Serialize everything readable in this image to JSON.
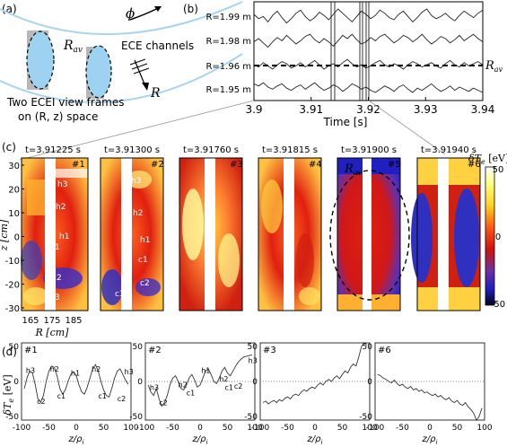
{
  "panel_a": {
    "label": "(a)",
    "phi": "ϕ",
    "rav": "R",
    "rav_sub": "av",
    "ece": "ECE channels",
    "r_arrow": "R",
    "caption_line1": "Two ECEI view frames",
    "caption_line2": "on (R, z) space"
  },
  "panel_b": {
    "label": "(b)",
    "rows": [
      {
        "label": "R=1.99 m",
        "values": [
          0.5,
          0.1,
          0.3,
          -0.2,
          0.4,
          0.8,
          0.2,
          -0.3,
          0.1,
          0.6,
          0.9,
          0.3,
          -0.1,
          0.2,
          0.7,
          0.4,
          0.0,
          0.5,
          1.0,
          0.6,
          0.2,
          -0.2,
          0.3,
          0.8,
          0.5,
          0.1,
          0.4,
          0.9,
          0.6,
          0.2,
          0.0,
          0.5,
          0.8,
          0.3,
          -0.2,
          0.2,
          0.7,
          1.0,
          0.4,
          0.1,
          0.3,
          0.6,
          0.2,
          -0.1,
          0.4,
          0.8,
          0.5,
          0.2,
          0.6,
          0.9
        ]
      },
      {
        "label": "R=1.98 m",
        "values": [
          0.2,
          0.5,
          0.1,
          -0.3,
          0.2,
          0.6,
          0.3,
          0.8,
          0.4,
          0.0,
          0.3,
          0.7,
          0.9,
          0.4,
          0.1,
          0.5,
          0.2,
          -0.2,
          0.3,
          0.8,
          0.5,
          0.9,
          0.4,
          0.0,
          0.2,
          0.6,
          0.3,
          0.7,
          0.9,
          0.5,
          0.1,
          0.4,
          0.8,
          0.6,
          0.2,
          0.5,
          0.9,
          0.4,
          0.0,
          0.3,
          0.7,
          0.5,
          0.1,
          0.4,
          0.8,
          0.3,
          0.6,
          0.9,
          0.5,
          0.2
        ]
      },
      {
        "label": "R=1.96 m",
        "values": [
          0.4,
          0.2,
          0.6,
          0.3,
          0.0,
          0.4,
          0.7,
          0.5,
          0.1,
          0.3,
          0.6,
          0.2,
          0.5,
          0.8,
          0.4,
          0.0,
          0.3,
          0.5,
          0.2,
          0.6,
          0.9,
          0.5,
          0.2,
          0.4,
          0.1,
          0.3,
          0.6,
          0.8,
          0.4,
          0.2,
          0.5,
          0.3,
          0.0,
          0.4,
          0.7,
          0.5,
          0.2,
          0.4,
          0.6,
          0.3,
          0.1,
          0.5,
          0.8,
          0.4,
          0.2,
          0.6,
          0.3,
          0.5,
          0.7,
          0.4
        ]
      },
      {
        "label": "R=1.95 m",
        "values": [
          0.8,
          0.6,
          0.9,
          0.5,
          0.3,
          0.6,
          0.8,
          0.4,
          0.2,
          0.5,
          0.7,
          0.3,
          0.6,
          0.9,
          0.5,
          0.2,
          0.4,
          0.7,
          0.5,
          0.1,
          0.4,
          0.8,
          0.6,
          0.3,
          0.5,
          0.2,
          0.0,
          0.3,
          0.6,
          0.4,
          0.1,
          0.5,
          0.7,
          0.3,
          0.0,
          0.4,
          0.2,
          0.5,
          0.8,
          0.4,
          0.1,
          0.3,
          0.6,
          0.2,
          0.5,
          0.3,
          0.1,
          0.4,
          0.2,
          0.0
        ]
      }
    ],
    "rav_label": "R",
    "rav_sub": "av",
    "xticks": [
      "3.9",
      "3.91",
      "3.92",
      "3.93",
      "3.94"
    ],
    "xlabel": "Time [s]"
  },
  "panel_c": {
    "label": "(c)",
    "frames": [
      {
        "time": "t=3.91225 s",
        "num": "#1",
        "tags": [
          "h3",
          "h2",
          "h1",
          "c1",
          "c2",
          "c3"
        ]
      },
      {
        "time": "t=3.91300 s",
        "num": "#2",
        "tags": [
          "h3",
          "h2",
          "h1",
          "c1",
          "c2",
          "c3"
        ]
      },
      {
        "time": "t=3.91760 s",
        "num": "#3",
        "tags": []
      },
      {
        "time": "t=3.91815 s",
        "num": "#4",
        "tags": []
      },
      {
        "time": "t=3.91900 s",
        "num": "#5",
        "tags": []
      },
      {
        "time": "t=3.91940 s",
        "num": "#6",
        "tags": []
      }
    ],
    "rav": "R",
    "rav_sub": "av",
    "yticks": [
      "30",
      "20",
      "10",
      "0",
      "-10",
      "-20",
      "-30"
    ],
    "ylabel": "z [cm]",
    "xticks": [
      "165",
      "175",
      "185"
    ],
    "xlabel": "R [cm]",
    "colorbar_title": "δT",
    "colorbar_unit": " [eV]",
    "colorbar_ticks": [
      "50",
      "0",
      "-50"
    ]
  },
  "panel_d": {
    "label": "(d)",
    "ylabel": "δT",
    "ylabel_unit": " [eV]",
    "xlabel": "z/ρ",
    "xticks": [
      "-100",
      "-50",
      "0",
      "50",
      "100"
    ],
    "yticks": [
      "50",
      "0",
      "-50"
    ],
    "plots": [
      {
        "num": "#1",
        "tags": [
          "h3",
          "h2",
          "h1",
          "h2",
          "h3",
          "c2",
          "c1",
          "c1",
          "c2"
        ],
        "x": [
          -95,
          -90,
          -85,
          -80,
          -75,
          -70,
          -65,
          -60,
          -55,
          -50,
          -45,
          -40,
          -35,
          -30,
          -25,
          -20,
          -15,
          -10,
          -5,
          0,
          5,
          10,
          15,
          20,
          25,
          30,
          35,
          40,
          45,
          50,
          55,
          60,
          65,
          70,
          75,
          80,
          85,
          90,
          95
        ],
        "y": [
          -10,
          5,
          15,
          12,
          -5,
          -25,
          -30,
          -20,
          0,
          15,
          22,
          20,
          8,
          -10,
          -18,
          -12,
          0,
          10,
          14,
          8,
          -5,
          -15,
          -18,
          -8,
          5,
          18,
          24,
          15,
          0,
          -12,
          -20,
          -22,
          -10,
          5,
          15,
          18,
          10,
          2,
          -4
        ]
      },
      {
        "num": "#2",
        "tags": [
          "h3",
          "c2",
          "h2",
          "c1",
          "h1",
          "h2",
          "c1",
          "c2",
          "h3"
        ],
        "x": [
          -95,
          -90,
          -85,
          -80,
          -75,
          -70,
          -65,
          -60,
          -55,
          -50,
          -45,
          -40,
          -35,
          -30,
          -25,
          -20,
          -15,
          -10,
          -5,
          0,
          5,
          10,
          15,
          20,
          25,
          30,
          35,
          40,
          45,
          50,
          55,
          60,
          65,
          70,
          75,
          80,
          85,
          90,
          95
        ],
        "y": [
          -5,
          -15,
          -20,
          -10,
          -25,
          -35,
          -30,
          -20,
          -5,
          5,
          8,
          0,
          -10,
          -12,
          -5,
          5,
          10,
          2,
          -8,
          -5,
          5,
          15,
          18,
          10,
          0,
          -3,
          5,
          15,
          20,
          12,
          8,
          15,
          22,
          28,
          32,
          35,
          36,
          37,
          38
        ]
      },
      {
        "num": "#3",
        "tags": [],
        "x": [
          -95,
          -90,
          -85,
          -80,
          -75,
          -70,
          -65,
          -60,
          -55,
          -50,
          -45,
          -40,
          -35,
          -30,
          -25,
          -20,
          -15,
          -10,
          -5,
          0,
          5,
          10,
          15,
          20,
          25,
          30,
          35,
          40,
          45,
          50,
          55,
          60,
          65,
          70,
          75,
          80,
          85,
          90,
          95
        ],
        "y": [
          -30,
          -28,
          -32,
          -29,
          -27,
          -30,
          -26,
          -28,
          -24,
          -22,
          -25,
          -20,
          -18,
          -20,
          -15,
          -12,
          -14,
          -10,
          -8,
          -10,
          -5,
          -2,
          -5,
          0,
          3,
          0,
          5,
          8,
          4,
          10,
          15,
          12,
          20,
          25,
          22,
          35,
          50,
          55,
          52
        ]
      },
      {
        "num": "#6",
        "tags": [],
        "x": [
          -95,
          -90,
          -85,
          -80,
          -75,
          -70,
          -65,
          -60,
          -55,
          -50,
          -45,
          -40,
          -35,
          -30,
          -25,
          -20,
          -15,
          -10,
          -5,
          0,
          5,
          10,
          15,
          20,
          25,
          30,
          35,
          40,
          45,
          50,
          55,
          60,
          65,
          70,
          75,
          80,
          85,
          90,
          95
        ],
        "y": [
          10,
          8,
          5,
          3,
          0,
          -2,
          2,
          -3,
          -6,
          -4,
          -8,
          -10,
          -7,
          -12,
          -10,
          -14,
          -12,
          -16,
          -15,
          -18,
          -20,
          -18,
          -22,
          -20,
          -24,
          -26,
          -23,
          -28,
          -30,
          -27,
          -32,
          -34,
          -30,
          -36,
          -40,
          -45,
          -55,
          -50,
          -38
        ]
      }
    ]
  }
}
